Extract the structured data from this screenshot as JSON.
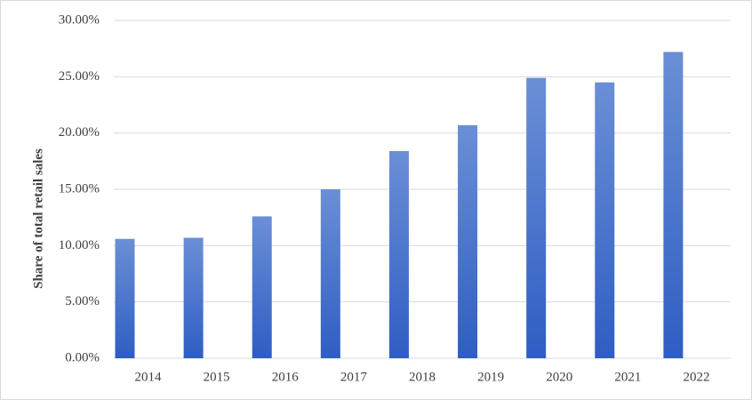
{
  "chart_data": {
    "type": "bar",
    "y_label": "Share of total retail sales",
    "categories": [
      "2014",
      "2015",
      "2016",
      "2017",
      "2018",
      "2019",
      "2020",
      "2021",
      "2022"
    ],
    "values": [
      10.6,
      10.7,
      12.6,
      15.0,
      18.4,
      20.7,
      24.9,
      24.5,
      27.2
    ],
    "color": "#4472c4",
    "ylim": [
      0,
      30
    ],
    "yticks": [
      {
        "value": 0,
        "label": "0.00%"
      },
      {
        "value": 5,
        "label": "5.00%"
      },
      {
        "value": 10,
        "label": "10.00%"
      },
      {
        "value": 15,
        "label": "15.00%"
      },
      {
        "value": 20,
        "label": "20.00%"
      },
      {
        "value": 25,
        "label": "25.00%"
      },
      {
        "value": 30,
        "label": "30.00%"
      }
    ],
    "grid": true
  }
}
